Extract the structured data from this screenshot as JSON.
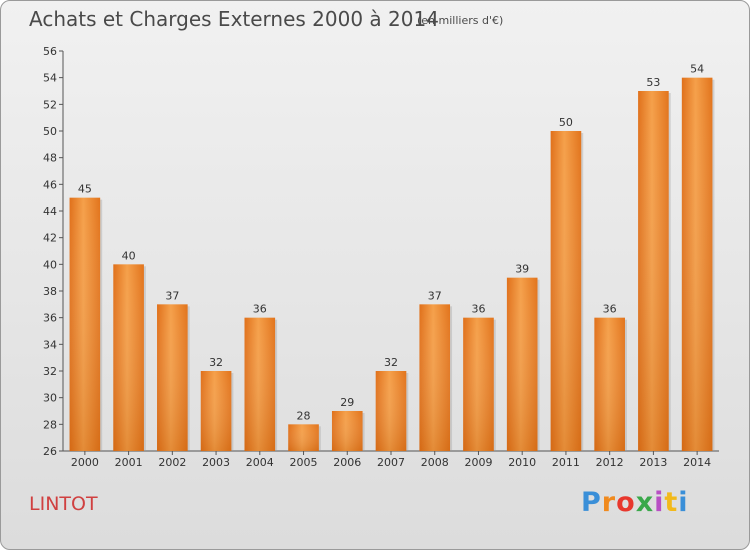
{
  "title": "Achats et Charges Externes 2000 à 2014",
  "unit": "(en milliers d'€)",
  "place": "LINTOT",
  "logo": {
    "text": "Proxiti",
    "letter_colors": [
      "#3a8fd8",
      "#f08a1e",
      "#e8372d",
      "#3aa84a",
      "#b84fc4",
      "#f2b91a",
      "#3a8fd8"
    ]
  },
  "chart_data": {
    "type": "bar",
    "categories": [
      "2000",
      "2001",
      "2002",
      "2003",
      "2004",
      "2005",
      "2006",
      "2007",
      "2008",
      "2009",
      "2010",
      "2011",
      "2012",
      "2013",
      "2014"
    ],
    "values": [
      45,
      40,
      37,
      32,
      36,
      28,
      29,
      32,
      37,
      36,
      39,
      50,
      36,
      53,
      54
    ],
    "ylim": [
      26,
      56
    ],
    "yticks": [
      26,
      28,
      30,
      32,
      34,
      36,
      38,
      40,
      42,
      44,
      46,
      48,
      50,
      52,
      54,
      56
    ],
    "grid": false,
    "bar_color": "#f08a30"
  }
}
